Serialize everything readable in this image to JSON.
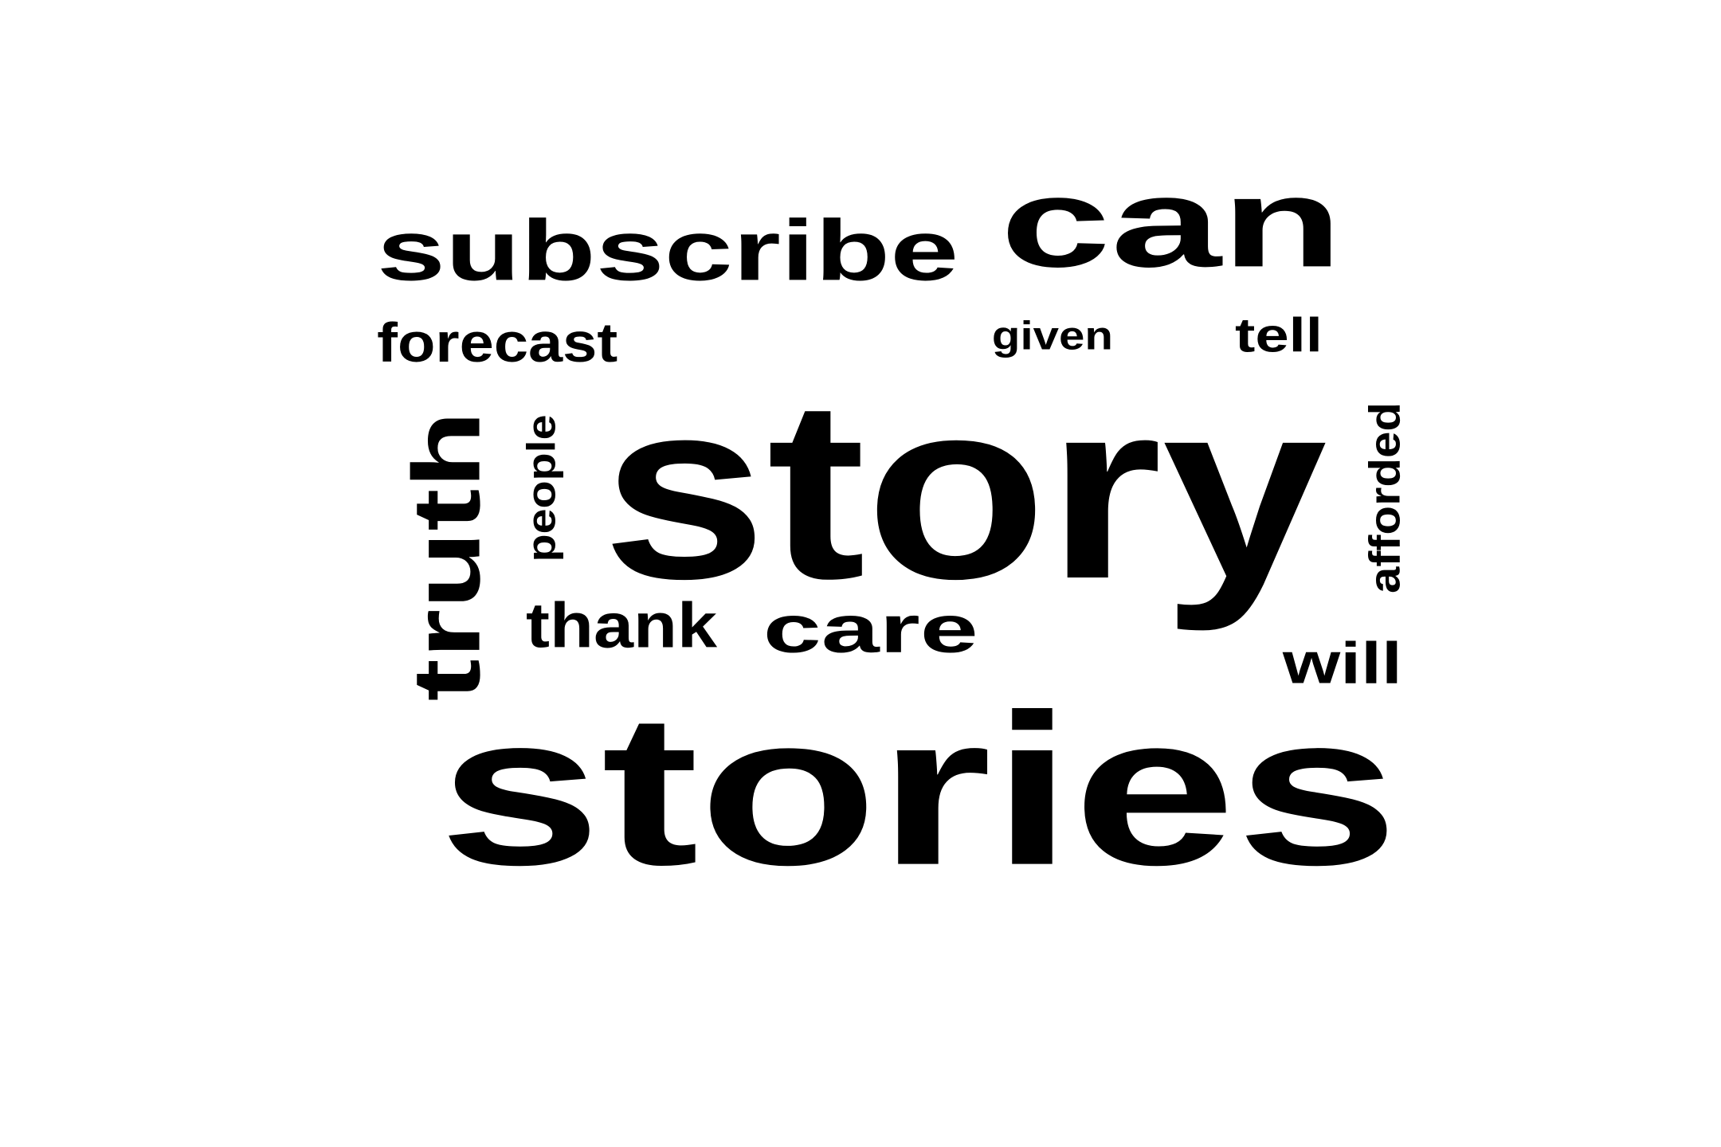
{
  "word_cloud": {
    "text_color": "#000000",
    "background_color": "#ffffff",
    "words": [
      {
        "id": "stories",
        "text": "stories",
        "orientation": "horizontal"
      },
      {
        "id": "story",
        "text": "story",
        "orientation": "horizontal"
      },
      {
        "id": "can",
        "text": "can",
        "orientation": "horizontal"
      },
      {
        "id": "subscribe",
        "text": "subscribe",
        "orientation": "horizontal"
      },
      {
        "id": "truth",
        "text": "truth",
        "orientation": "vertical"
      },
      {
        "id": "care",
        "text": "care",
        "orientation": "horizontal"
      },
      {
        "id": "thank",
        "text": "thank",
        "orientation": "horizontal"
      },
      {
        "id": "forecast",
        "text": "forecast",
        "orientation": "horizontal"
      },
      {
        "id": "will",
        "text": "will",
        "orientation": "horizontal"
      },
      {
        "id": "tell",
        "text": "tell",
        "orientation": "horizontal"
      },
      {
        "id": "people",
        "text": "people",
        "orientation": "vertical"
      },
      {
        "id": "afforded",
        "text": "afforded",
        "orientation": "vertical"
      },
      {
        "id": "given",
        "text": "given",
        "orientation": "horizontal"
      }
    ]
  }
}
